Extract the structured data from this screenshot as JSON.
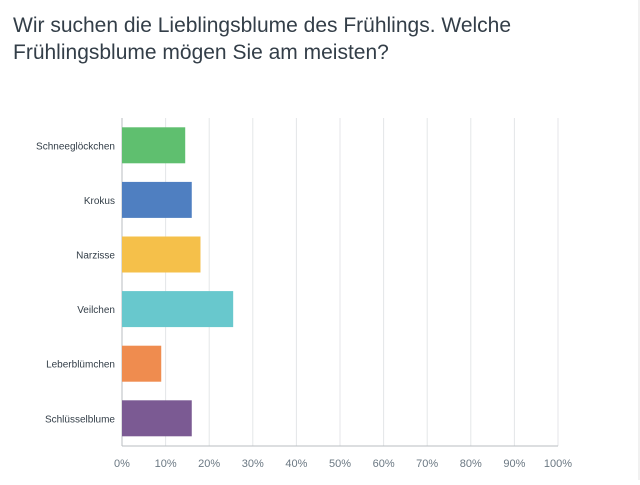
{
  "question": {
    "title": "Wir suchen die Lieblingsblume des Frühlings. Welche Frühlingsblume mögen Sie am meisten?"
  },
  "chart_data": {
    "type": "bar",
    "orientation": "horizontal",
    "categories": [
      "Schneeglöckchen",
      "Krokus",
      "Narzisse",
      "Veilchen",
      "Leberblümchen",
      "Schlüsselblume"
    ],
    "values": [
      14.5,
      16,
      18,
      25.5,
      9,
      16
    ],
    "colors": [
      "#5fbf6f",
      "#4f7fc1",
      "#f5c04a",
      "#68c8cd",
      "#ef8c4f",
      "#7b5a93"
    ],
    "xlim": [
      0,
      100
    ],
    "xticks": [
      "0%",
      "10%",
      "20%",
      "30%",
      "40%",
      "50%",
      "60%",
      "70%",
      "80%",
      "90%",
      "100%"
    ],
    "grid": true,
    "xlabel": "",
    "ylabel": ""
  }
}
